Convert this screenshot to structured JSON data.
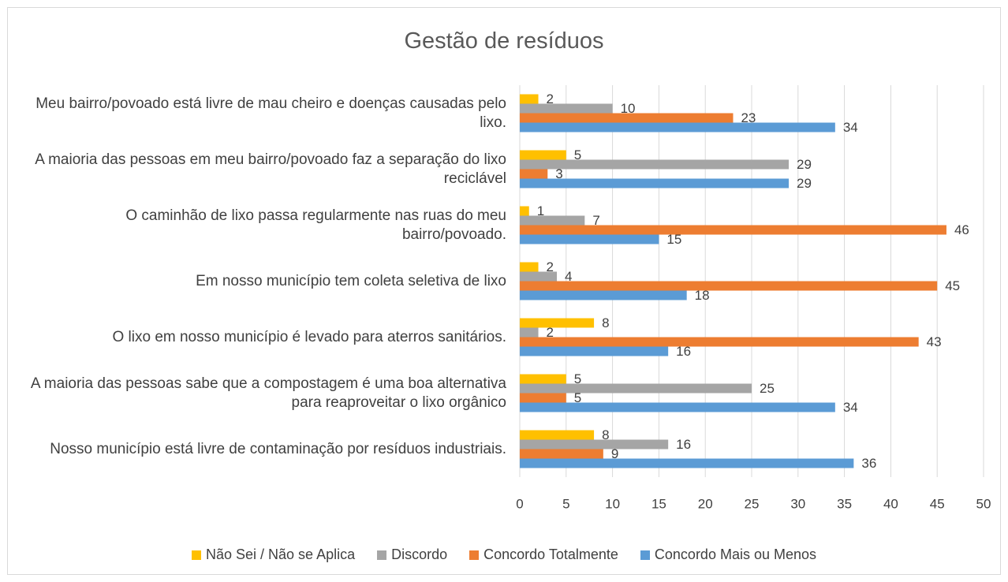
{
  "chart_data": {
    "type": "barh",
    "title": "Gestão de resíduos",
    "categories": [
      "Meu bairro/povoado está livre de mau cheiro e doenças causadas pelo lixo.",
      "A maioria das pessoas em meu bairro/povoado faz a separação do lixo reciclável",
      "O caminhão de lixo passa regularmente nas ruas do meu bairro/povoado.",
      "Em nosso município tem coleta seletiva de lixo",
      "O lixo em nosso município é levado para aterros sanitários.",
      "A maioria das pessoas sabe que a compostagem é uma boa alternativa para reaproveitar o lixo orgânico",
      "Nosso município está livre de contaminação por resíduos industriais."
    ],
    "series": [
      {
        "name": "Não Sei / Não se Aplica",
        "color": "#FFC000",
        "values": [
          2,
          5,
          1,
          2,
          8,
          5,
          8
        ]
      },
      {
        "name": "Discordo",
        "color": "#A5A5A5",
        "values": [
          10,
          29,
          7,
          4,
          2,
          25,
          16
        ]
      },
      {
        "name": "Concordo Totalmente",
        "color": "#ED7D31",
        "values": [
          23,
          3,
          46,
          45,
          43,
          5,
          9
        ]
      },
      {
        "name": "Concordo Mais ou Menos",
        "color": "#5B9BD5",
        "values": [
          34,
          29,
          15,
          18,
          16,
          34,
          36
        ]
      }
    ],
    "xlim": [
      0,
      50
    ],
    "xticks": [
      0,
      5,
      10,
      15,
      20,
      25,
      30,
      35,
      40,
      45,
      50
    ],
    "grid": true,
    "legend": "bottom"
  }
}
